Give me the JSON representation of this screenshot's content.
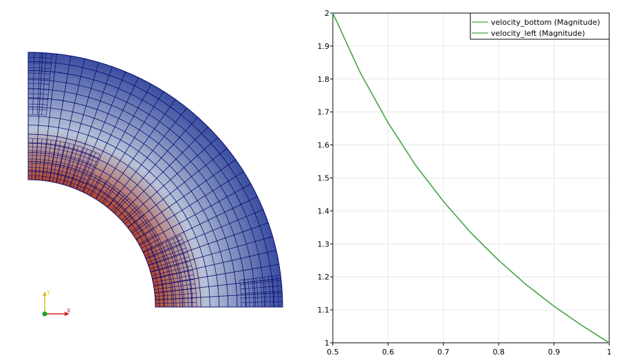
{
  "render_view": {
    "field_colors": {
      "cold": "#3a4ea0",
      "mid": "#b8c4d8",
      "hot": "#b4472c"
    },
    "mesh_color": "#0a0a6e",
    "orientation_axes": {
      "x_label": "X",
      "y_label": "Y",
      "x_color": "#cc2222",
      "y_color": "#d4c21a",
      "z_color": "#11aa22"
    }
  },
  "chart_data": {
    "type": "line",
    "title": "",
    "xlabel": "",
    "ylabel": "",
    "xlim": [
      0.5,
      1.0
    ],
    "ylim": [
      1.0,
      2.0
    ],
    "xticks": [
      "0.5",
      "0.6",
      "0.7",
      "0.8",
      "0.9",
      "1"
    ],
    "yticks": [
      "1",
      "1.1",
      "1.2",
      "1.3",
      "1.4",
      "1.5",
      "1.6",
      "1.7",
      "1.8",
      "1.9",
      "2"
    ],
    "grid": true,
    "legend_position": "top-right",
    "series": [
      {
        "name": "velocity_bottom (Magnitude)",
        "color": "#33b833",
        "x": [
          0.5,
          0.55,
          0.6,
          0.65,
          0.7,
          0.75,
          0.8,
          0.85,
          0.9,
          0.95,
          1.0
        ],
        "y": [
          2.0,
          1.818,
          1.667,
          1.538,
          1.429,
          1.333,
          1.25,
          1.176,
          1.111,
          1.053,
          1.0
        ]
      },
      {
        "name": "velocity_left (Magnitude)",
        "color": "#4a9a4a",
        "x": [
          0.5,
          0.55,
          0.6,
          0.65,
          0.7,
          0.75,
          0.8,
          0.85,
          0.9,
          0.95,
          1.0
        ],
        "y": [
          2.0,
          1.818,
          1.667,
          1.538,
          1.429,
          1.333,
          1.25,
          1.176,
          1.111,
          1.053,
          1.0
        ]
      }
    ]
  }
}
